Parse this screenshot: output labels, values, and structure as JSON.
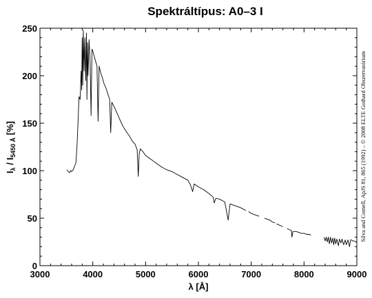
{
  "chart_data": {
    "type": "line",
    "title": "Spektráltípus: A0–3 I",
    "xlabel": "λ [Å]",
    "ylabel_main": "I",
    "ylabel_sub1": "λ",
    "ylabel_mid": " / I",
    "ylabel_sub2": "5450 Å",
    "ylabel_unit": " [%]",
    "credit": "Silva and Cornell, ApJS 81, 865 (1992) – © 2008 ELTE Gothard Obszervatórium",
    "xlim": [
      3000,
      9000
    ],
    "ylim": [
      0,
      250
    ],
    "x_ticks": [
      3000,
      4000,
      5000,
      6000,
      7000,
      8000,
      9000
    ],
    "y_ticks": [
      0,
      50,
      100,
      150,
      200,
      250
    ],
    "grid": false,
    "series": [
      {
        "segments": [
          [
            [
              3510,
              101
            ],
            [
              3540,
              99
            ],
            [
              3560,
              98
            ],
            [
              3580,
              100
            ],
            [
              3600,
              99
            ],
            [
              3630,
              101
            ],
            [
              3650,
              104
            ],
            [
              3680,
              108
            ],
            [
              3700,
              125
            ],
            [
              3720,
              150
            ],
            [
              3740,
              178
            ],
            [
              3760,
              175
            ],
            [
              3780,
              205
            ],
            [
              3790,
              185
            ],
            [
              3800,
              240
            ],
            [
              3810,
              190
            ],
            [
              3820,
              248
            ],
            [
              3835,
              205
            ],
            [
              3850,
              240
            ],
            [
              3865,
              195
            ],
            [
              3880,
              245
            ],
            [
              3890,
              175
            ],
            [
              3900,
              235
            ],
            [
              3910,
              200
            ],
            [
              3930,
              238
            ],
            [
              3950,
              215
            ],
            [
              3968,
              158
            ],
            [
              3985,
              228
            ],
            [
              4000,
              226
            ],
            [
              4020,
              222
            ],
            [
              4040,
              218
            ],
            [
              4060,
              214
            ],
            [
              4080,
              210
            ],
            [
              4101,
              152
            ],
            [
              4120,
              210
            ],
            [
              4150,
              203
            ],
            [
              4180,
              198
            ],
            [
              4210,
              192
            ],
            [
              4250,
              187
            ],
            [
              4290,
              180
            ],
            [
              4320,
              175
            ],
            [
              4340,
              140
            ],
            [
              4360,
              172
            ],
            [
              4400,
              168
            ],
            [
              4440,
              163
            ],
            [
              4480,
              158
            ],
            [
              4520,
              153
            ],
            [
              4560,
              148
            ],
            [
              4600,
              144
            ],
            [
              4650,
              140
            ],
            [
              4700,
              136
            ],
            [
              4750,
              131
            ],
            [
              4800,
              128
            ],
            [
              4840,
              122
            ],
            [
              4861,
              94
            ],
            [
              4880,
              118
            ],
            [
              4900,
              123
            ],
            [
              4950,
              120
            ],
            [
              5000,
              116
            ],
            [
              5050,
              114
            ],
            [
              5100,
              112
            ],
            [
              5150,
              110
            ],
            [
              5200,
              108
            ],
            [
              5300,
              104
            ],
            [
              5400,
              101
            ],
            [
              5500,
              99
            ],
            [
              5600,
              96
            ],
            [
              5700,
              93
            ],
            [
              5800,
              90
            ],
            [
              5850,
              85
            ],
            [
              5890,
              78
            ],
            [
              5920,
              86
            ],
            [
              6000,
              83
            ],
            [
              6100,
              80
            ],
            [
              6200,
              76
            ],
            [
              6280,
              72
            ],
            [
              6300,
              66
            ],
            [
              6330,
              71
            ],
            [
              6400,
              70
            ],
            [
              6500,
              67
            ],
            [
              6563,
              48
            ],
            [
              6600,
              65
            ],
            [
              6700,
              63
            ],
            [
              6800,
              61
            ],
            [
              6900,
              58
            ]
          ],
          [
            [
              6950,
              57
            ],
            [
              7000,
              55
            ],
            [
              7050,
              54
            ],
            [
              7100,
              53
            ],
            [
              7150,
              52
            ]
          ],
          [
            [
              7250,
              50
            ],
            [
              7300,
              49
            ],
            [
              7350,
              48
            ],
            [
              7400,
              46
            ],
            [
              7450,
              45
            ]
          ],
          [
            [
              7480,
              44
            ],
            [
              7520,
              43
            ],
            [
              7560,
              42
            ],
            [
              7600,
              41
            ]
          ],
          [
            [
              7680,
              39
            ],
            [
              7720,
              38
            ],
            [
              7760,
              37
            ],
            [
              7771,
              30
            ],
            [
              7790,
              36
            ],
            [
              7850,
              36
            ],
            [
              7900,
              35
            ],
            [
              7950,
              34
            ],
            [
              8000,
              34
            ],
            [
              8050,
              33
            ],
            [
              8100,
              33
            ],
            [
              8130,
              32
            ]
          ],
          [
            [
              8380,
              30
            ],
            [
              8400,
              26
            ],
            [
              8420,
              30
            ],
            [
              8440,
              25
            ],
            [
              8460,
              30
            ],
            [
              8480,
              23
            ],
            [
              8500,
              30
            ],
            [
              8520,
              24
            ],
            [
              8545,
              29
            ],
            [
              8560,
              22
            ],
            [
              8580,
              29
            ],
            [
              8600,
              23
            ],
            [
              8620,
              28
            ],
            [
              8650,
              21
            ],
            [
              8670,
              28
            ],
            [
              8700,
              24
            ],
            [
              8720,
              28
            ],
            [
              8750,
              22
            ],
            [
              8780,
              27
            ],
            [
              8800,
              22
            ],
            [
              8830,
              27
            ],
            [
              8862,
              20
            ],
            [
              8880,
              27
            ],
            [
              8900,
              27
            ],
            [
              8920,
              26
            ],
            [
              8950,
              26
            ],
            [
              8980,
              25
            ],
            [
              9000,
              25
            ]
          ]
        ]
      }
    ]
  }
}
